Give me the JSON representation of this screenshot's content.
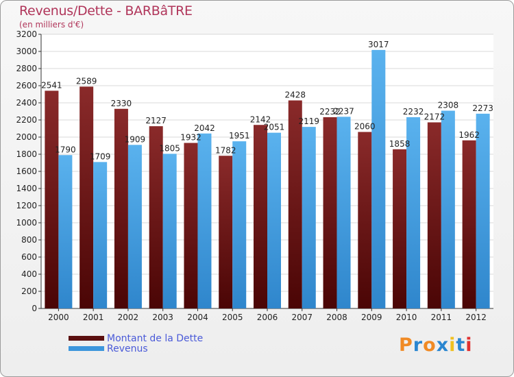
{
  "chart_data": {
    "type": "bar",
    "title": "Revenus/Dette - BARBâTRE",
    "subtitle": "(en milliers d'€)",
    "categories": [
      "2000",
      "2001",
      "2002",
      "2003",
      "2004",
      "2005",
      "2006",
      "2007",
      "2008",
      "2009",
      "2010",
      "2011",
      "2012"
    ],
    "series": [
      {
        "name": "Montant de la Dette",
        "color": "#7a1c1c",
        "values": [
          2541,
          2589,
          2330,
          2127,
          1932,
          1782,
          2142,
          2428,
          2232,
          2060,
          1858,
          2172,
          1962
        ]
      },
      {
        "name": "Revenus",
        "color": "#4aa6e8",
        "values": [
          1790,
          1709,
          1909,
          1805,
          2042,
          1951,
          2051,
          2119,
          2237,
          3017,
          2232,
          2308,
          2273
        ]
      }
    ],
    "ylim": [
      0,
      3200
    ],
    "yticks": [
      0,
      200,
      400,
      600,
      800,
      1000,
      1200,
      1400,
      1600,
      1800,
      2000,
      2200,
      2400,
      2600,
      2800,
      3000,
      3200
    ],
    "grid": true,
    "legend_position": "bottom-left",
    "xlabel": "",
    "ylabel": ""
  },
  "brand": {
    "logo_text": "Proxiti",
    "letters": [
      "P",
      "r",
      "o",
      "x",
      "i",
      "t",
      "i"
    ],
    "letter_colors": [
      "#f08a24",
      "#2a86d0",
      "#f08a24",
      "#2a86d0",
      "#f0c020",
      "#2a86d0",
      "#e03030"
    ]
  }
}
